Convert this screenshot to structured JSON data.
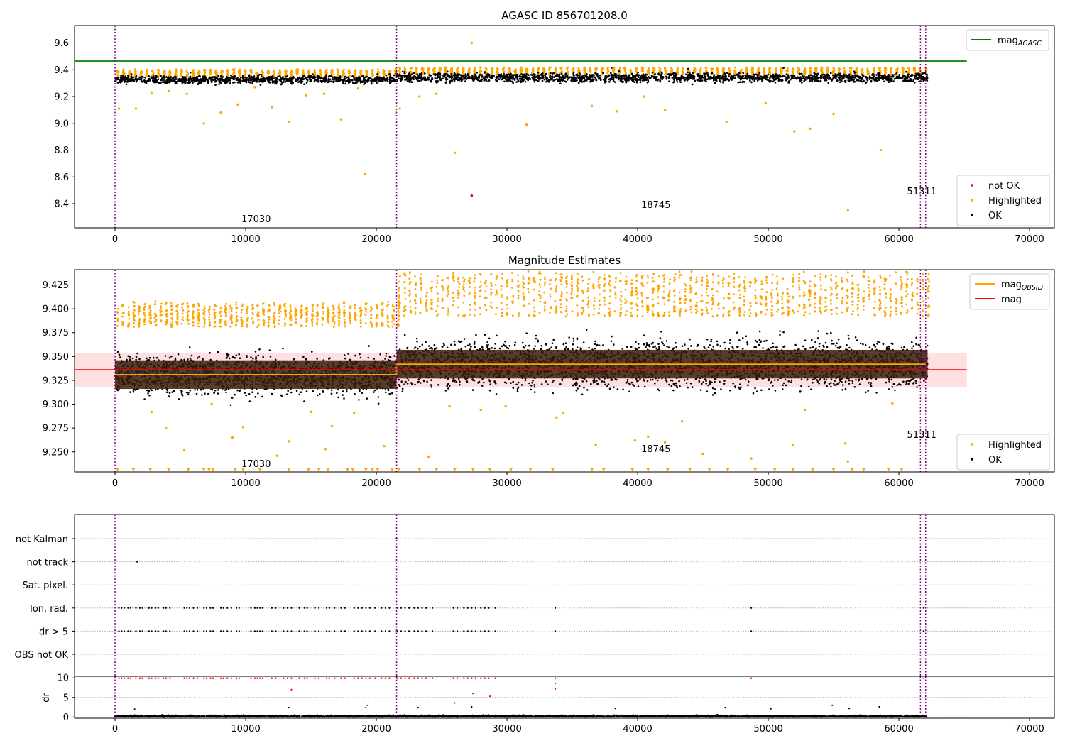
{
  "chart_data": [
    {
      "type": "scatter",
      "title": "AGASC ID 856701208.0",
      "xlabel": "",
      "ylabel": "",
      "xlim": [
        -3100,
        71900
      ],
      "ylim": [
        8.22,
        9.73
      ],
      "xticks": [
        0,
        10000,
        20000,
        30000,
        40000,
        50000,
        60000,
        70000
      ],
      "yticks": [
        8.4,
        8.6,
        8.8,
        9.0,
        9.2,
        9.4,
        9.6
      ],
      "ytick_decimals": 1,
      "obs_boundaries": [
        0,
        21550,
        61650,
        62050
      ],
      "obs_labels": [
        {
          "text": "17030",
          "x": 10800,
          "y": 8.29
        },
        {
          "text": "18745",
          "x": 41400,
          "y": 8.395
        },
        {
          "text": "51311",
          "x": 61750,
          "y": 8.495
        }
      ],
      "lines": [
        {
          "name": "mag_AGASC",
          "color": "#008000",
          "x": [
            -3100,
            65200
          ],
          "y": [
            9.465,
            9.465
          ]
        }
      ],
      "ok_segments": [
        {
          "x0": 0,
          "x1": 21550,
          "center": 9.327,
          "spread": 0.028
        },
        {
          "x0": 21550,
          "x1": 62200,
          "center": 9.342,
          "spread": 0.032
        }
      ],
      "highlighted_points": {
        "x": [
          300,
          1600,
          2800,
          4100,
          5500,
          6800,
          8100,
          9400,
          10700,
          12000,
          13300,
          14600,
          16000,
          17300,
          18600,
          19100,
          21800,
          23300,
          24600,
          26000,
          27300,
          31500,
          36500,
          38400,
          40500,
          42100,
          46800,
          49800,
          52000,
          53200,
          55000,
          56100,
          58600
        ],
        "y": [
          9.11,
          9.11,
          9.23,
          9.24,
          9.22,
          9.0,
          9.08,
          9.14,
          9.27,
          9.12,
          9.01,
          9.21,
          9.22,
          9.03,
          9.26,
          8.62,
          9.11,
          9.2,
          9.22,
          8.78,
          9.6,
          8.99,
          9.13,
          9.09,
          9.2,
          9.1,
          9.01,
          9.15,
          8.94,
          8.96,
          9.07,
          8.35,
          8.8
        ]
      },
      "not_ok_points": {
        "x": [
          27300
        ],
        "y": [
          8.46
        ]
      },
      "legends": [
        {
          "placement": "upper-right",
          "entries": [
            {
              "label": "mag",
              "subscript": "AGASC",
              "color": "#008000",
              "kind": "line"
            }
          ]
        },
        {
          "placement": "lower-right",
          "entries": [
            {
              "label": "not OK",
              "color": "#ff0000",
              "kind": "dot"
            },
            {
              "label": "Highlighted",
              "color": "#ffa500",
              "kind": "dot"
            },
            {
              "label": "OK",
              "color": "#000000",
              "kind": "dot"
            }
          ]
        }
      ]
    },
    {
      "type": "scatter",
      "title": "Magnitude Estimates",
      "xlabel": "",
      "ylabel": "",
      "xlim": [
        -3100,
        71900
      ],
      "ylim": [
        9.229,
        9.441
      ],
      "xticks": [
        0,
        10000,
        20000,
        30000,
        40000,
        50000,
        60000,
        70000
      ],
      "yticks": [
        9.25,
        9.275,
        9.3,
        9.325,
        9.35,
        9.375,
        9.4,
        9.425
      ],
      "ytick_decimals": 3,
      "obs_boundaries": [
        0,
        21550,
        61650,
        62050
      ],
      "obs_labels": [
        {
          "text": "17030",
          "x": 10800,
          "y": 9.238
        },
        {
          "text": "18745",
          "x": 41400,
          "y": 9.2535
        },
        {
          "text": "51311",
          "x": 61750,
          "y": 9.2685
        }
      ],
      "band": {
        "x0": -3100,
        "x1": 65200,
        "y0": 9.318,
        "y1": 9.354,
        "color": "#ffcccc"
      },
      "lines": [
        {
          "name": "mag_OBSID",
          "color": "#ffa500",
          "x": [
            0,
            21550,
            21550,
            62050
          ],
          "y": [
            9.331,
            9.331,
            9.342,
            9.342
          ]
        },
        {
          "name": "mag",
          "color": "#ff0000",
          "x": [
            -3100,
            65200
          ],
          "y": [
            9.336,
            9.336
          ]
        }
      ],
      "ok_segments": [
        {
          "x0": 0,
          "x1": 21550,
          "center": 9.331,
          "spread": 0.02
        },
        {
          "x0": 21550,
          "x1": 62200,
          "center": 9.342,
          "spread": 0.024
        }
      ],
      "highlighted_points": {
        "x": [
          2800,
          3900,
          5300,
          7400,
          9000,
          9800,
          12400,
          13300,
          15000,
          16100,
          16600,
          18300,
          20600,
          24000,
          25600,
          28000,
          29900,
          33800,
          34300,
          36800,
          39800,
          40800,
          42100,
          43400,
          45000,
          48700,
          51900,
          52800,
          55900,
          56100,
          59500
        ],
        "y": [
          9.292,
          9.275,
          9.252,
          9.3,
          9.265,
          9.276,
          9.246,
          9.261,
          9.292,
          9.253,
          9.277,
          9.291,
          9.256,
          9.245,
          9.298,
          9.294,
          9.298,
          9.286,
          9.291,
          9.257,
          9.262,
          9.266,
          9.26,
          9.282,
          9.248,
          9.243,
          9.257,
          9.294,
          9.259,
          9.24,
          9.301
        ]
      },
      "below_range_markers": {
        "x": [
          200,
          1400,
          2700,
          4100,
          5600,
          6800,
          7200,
          7500,
          9200,
          9800,
          11100,
          13300,
          14800,
          15600,
          16300,
          17800,
          18200,
          19200,
          19700,
          20100,
          21200,
          21700,
          23300,
          24600,
          26000,
          27400,
          28700,
          30300,
          31800,
          33500,
          36500,
          37400,
          39600,
          40800,
          42300,
          44000,
          45500,
          46900,
          49000,
          50500,
          51900,
          53400,
          55000,
          56400,
          57300,
          59200,
          60200
        ]
      },
      "legends": [
        {
          "placement": "upper-right",
          "entries": [
            {
              "label": "mag",
              "subscript": "OBSID",
              "color": "#ffa500",
              "kind": "line"
            },
            {
              "label": "mag",
              "subscript": "",
              "color": "#ff0000",
              "kind": "line"
            }
          ]
        },
        {
          "placement": "lower-right",
          "entries": [
            {
              "label": "Highlighted",
              "color": "#ffa500",
              "kind": "dot"
            },
            {
              "label": "OK",
              "color": "#000000",
              "kind": "dot"
            }
          ]
        }
      ]
    },
    {
      "type": "scatter",
      "title": "",
      "xlabel": "",
      "ylabel": "",
      "xlim": [
        -3100,
        71900
      ],
      "flag_categories": [
        "not Kalman",
        "not track",
        "Sat. pixel.",
        "Ion. rad.",
        "dr > 5",
        "OBS not OK"
      ],
      "obs_boundaries": [
        0,
        21550,
        61650,
        62050
      ],
      "flagged_x": [
        300,
        500,
        700,
        1000,
        1200,
        1600,
        1900,
        2100,
        2600,
        2800,
        3100,
        3300,
        3700,
        3900,
        4200,
        5300,
        5500,
        5700,
        6000,
        6300,
        6800,
        7000,
        7300,
        7500,
        8100,
        8300,
        8600,
        8900,
        9300,
        9500,
        10400,
        10700,
        10900,
        11100,
        11300,
        12000,
        12300,
        12900,
        13200,
        13500,
        14100,
        14500,
        14700,
        15300,
        15600,
        16200,
        16400,
        16800,
        17300,
        17600,
        18300,
        18600,
        18900,
        19200,
        19500,
        19900,
        20400,
        20700,
        21000,
        21600,
        21900,
        22200,
        22500,
        22900,
        23200,
        23500,
        23800,
        24300,
        25900,
        26200,
        26700,
        27000,
        27300,
        27600,
        28000,
        28300,
        28600,
        29100,
        33700,
        48700,
        61900
      ],
      "not_track_x": [
        1700
      ],
      "not_kalman_x": [
        21550
      ],
      "dr": {
        "ylabel": "dr",
        "ylim": [
          -0.3,
          10.4
        ],
        "yticks": [
          0,
          5,
          10
        ],
        "flag_threshold": 10,
        "red_extra": {
          "x": [
            13500,
            19300,
            26000,
            27400,
            28700,
            33700,
            33700
          ],
          "y": [
            7.0,
            3.0,
            3.6,
            6.0,
            5.3,
            8.6,
            7.2
          ]
        },
        "black_outliers": {
          "x": [
            1500,
            13300,
            19200,
            23200,
            27300,
            38300,
            46700,
            50200,
            54900,
            56200,
            58500
          ],
          "y": [
            2.0,
            2.4,
            2.4,
            2.4,
            2.6,
            2.2,
            2.4,
            2.1,
            3.0,
            2.2,
            2.6
          ]
        }
      },
      "xticks": [
        0,
        10000,
        20000,
        30000,
        40000,
        50000,
        60000,
        70000
      ]
    }
  ]
}
